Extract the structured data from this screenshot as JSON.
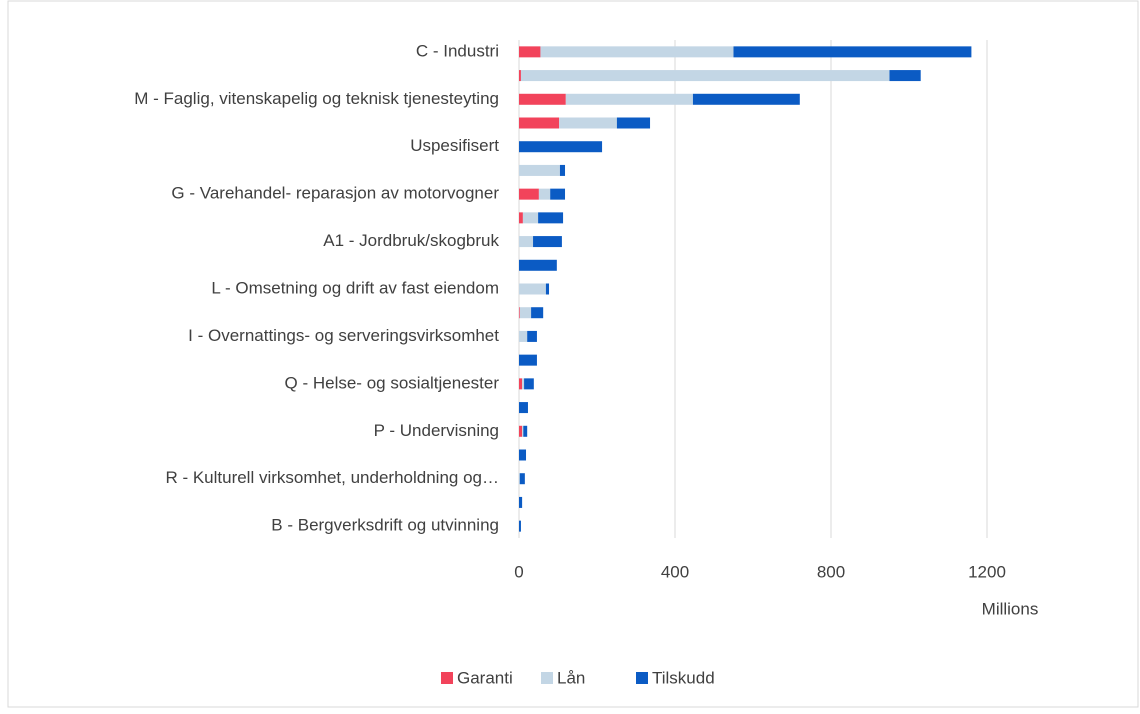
{
  "chart_data": {
    "type": "stacked_barh",
    "categories": [
      "C - Industri",
      null,
      "M - Faglig, vitenskapelig og teknisk tjenesteyting",
      null,
      "Uspesifisert",
      null,
      "G - Varehandel- reparasjon av motorvogner",
      null,
      "A1 - Jordbruk/skogbruk",
      null,
      "L - Omsetning og drift av fast eiendom",
      null,
      "I - Overnattings- og serveringsvirksomhet",
      null,
      "Q - Helse- og sosialtjenester",
      null,
      "P - Undervisning",
      null,
      "R - Kulturell virksomhet, underholdning og…",
      null,
      "B - Bergverksdrift og utvinning"
    ],
    "series": [
      {
        "name": "Garanti",
        "color": "#f2435b",
        "values": [
          55,
          5,
          120,
          103,
          0,
          0,
          51,
          10,
          0,
          0,
          0,
          2,
          0,
          0,
          8,
          0,
          8,
          0,
          0,
          0,
          0
        ]
      },
      {
        "name": "Lån",
        "color": "#c3d6e5",
        "values": [
          495,
          945,
          326,
          148,
          0,
          105,
          29,
          39,
          36,
          0,
          69,
          29,
          21,
          0,
          5,
          0,
          3,
          0,
          2,
          0,
          0
        ]
      },
      {
        "name": "Tilskudd",
        "color": "#0b5bc4",
        "values": [
          610,
          80,
          274,
          85,
          213,
          13,
          38,
          64,
          74,
          97,
          8,
          31,
          25,
          46,
          25,
          23,
          10,
          18,
          13,
          8,
          5
        ]
      }
    ],
    "xlabel": "Millions",
    "xlim": [
      0,
      1500
    ],
    "xticks": [
      0,
      400,
      800,
      1200
    ],
    "grid": true,
    "legend": "bottom"
  }
}
